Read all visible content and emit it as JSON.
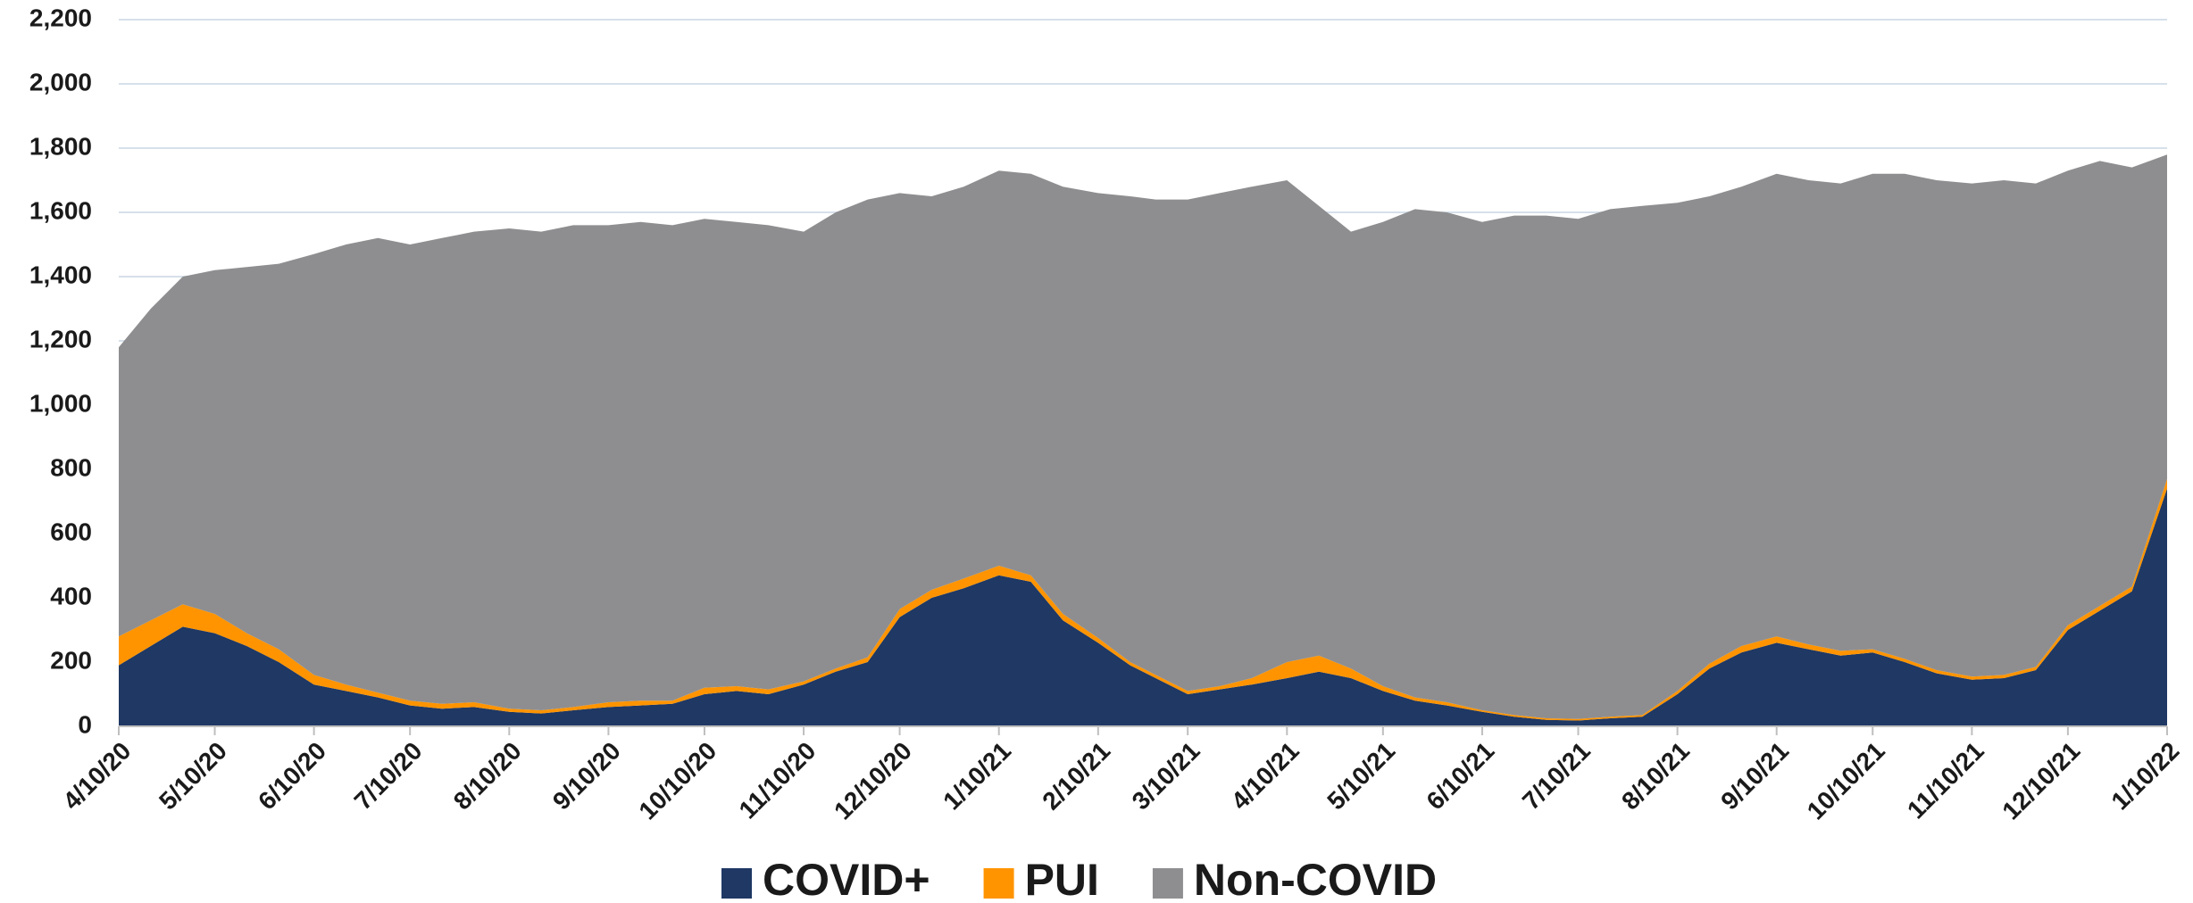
{
  "chart_data": {
    "type": "stacked_area",
    "x": [
      "4/10/20",
      "4/20/20",
      "4/30/20",
      "5/10/20",
      "5/20/20",
      "5/30/20",
      "6/10/20",
      "6/20/20",
      "6/30/20",
      "7/10/20",
      "7/20/20",
      "7/30/20",
      "8/10/20",
      "8/20/20",
      "8/30/20",
      "9/10/20",
      "9/20/20",
      "9/30/20",
      "10/10/20",
      "10/20/20",
      "10/30/20",
      "11/10/20",
      "11/20/20",
      "11/30/20",
      "12/10/20",
      "12/20/20",
      "12/30/20",
      "1/10/21",
      "1/20/21",
      "1/30/21",
      "2/10/21",
      "2/20/21",
      "2/28/21",
      "3/10/21",
      "3/20/21",
      "3/30/21",
      "4/10/21",
      "4/20/21",
      "4/30/21",
      "5/10/21",
      "5/20/21",
      "5/30/21",
      "6/10/21",
      "6/20/21",
      "6/30/21",
      "7/10/21",
      "7/20/21",
      "7/30/21",
      "8/10/21",
      "8/20/21",
      "8/30/21",
      "9/10/21",
      "9/20/21",
      "9/30/21",
      "10/10/21",
      "10/20/21",
      "10/30/21",
      "11/10/21",
      "11/20/21",
      "11/30/21",
      "12/10/21",
      "12/20/21",
      "12/30/21",
      "1/10/22"
    ],
    "series": [
      {
        "name": "COVID+",
        "color": "#1f3864",
        "values": [
          190,
          250,
          310,
          290,
          250,
          200,
          130,
          110,
          90,
          65,
          55,
          60,
          45,
          40,
          50,
          60,
          65,
          70,
          100,
          110,
          100,
          130,
          170,
          200,
          340,
          400,
          430,
          470,
          450,
          330,
          260,
          190,
          150,
          100,
          115,
          130,
          150,
          170,
          150,
          110,
          80,
          65,
          45,
          30,
          20,
          18,
          25,
          30,
          100,
          180,
          230,
          260,
          240,
          220,
          230,
          200,
          165,
          145,
          150,
          175,
          300,
          360,
          420,
          740
        ]
      },
      {
        "name": "PUI",
        "color": "#ff9400",
        "values": [
          90,
          80,
          70,
          60,
          40,
          40,
          30,
          20,
          15,
          15,
          15,
          15,
          10,
          10,
          10,
          15,
          15,
          10,
          20,
          15,
          15,
          10,
          10,
          15,
          25,
          25,
          30,
          30,
          20,
          20,
          15,
          10,
          10,
          10,
          10,
          20,
          50,
          50,
          30,
          15,
          10,
          10,
          5,
          5,
          5,
          5,
          5,
          5,
          10,
          15,
          20,
          20,
          15,
          15,
          10,
          10,
          10,
          10,
          10,
          10,
          15,
          15,
          15,
          30
        ]
      },
      {
        "name": "Non-COVID",
        "color": "#8e8e90",
        "values": [
          900,
          970,
          1020,
          1070,
          1140,
          1200,
          1310,
          1370,
          1415,
          1420,
          1450,
          1465,
          1495,
          1490,
          1500,
          1485,
          1490,
          1480,
          1460,
          1445,
          1445,
          1400,
          1420,
          1425,
          1295,
          1225,
          1220,
          1230,
          1250,
          1330,
          1385,
          1450,
          1480,
          1530,
          1535,
          1530,
          1500,
          1400,
          1360,
          1445,
          1520,
          1525,
          1520,
          1555,
          1565,
          1557,
          1580,
          1585,
          1520,
          1455,
          1430,
          1440,
          1445,
          1455,
          1480,
          1510,
          1525,
          1535,
          1540,
          1505,
          1415,
          1385,
          1305,
          1010
        ]
      }
    ],
    "xticks": [
      "4/10/20",
      "5/10/20",
      "6/10/20",
      "7/10/20",
      "8/10/20",
      "9/10/20",
      "10/10/20",
      "11/10/20",
      "12/10/20",
      "1/10/21",
      "2/10/21",
      "3/10/21",
      "4/10/21",
      "5/10/21",
      "6/10/21",
      "7/10/21",
      "8/10/21",
      "9/10/21",
      "10/10/21",
      "11/10/21",
      "12/10/21",
      "1/10/22"
    ],
    "ylim": [
      0,
      2200
    ],
    "yticks": [
      0,
      200,
      400,
      600,
      800,
      {
        "value": 1000,
        "label": "1,000"
      },
      {
        "value": 1200,
        "label": "1,200"
      },
      {
        "value": 1400,
        "label": "1,400"
      },
      {
        "value": 1600,
        "label": "1,600"
      },
      {
        "value": 1800,
        "label": "1,800"
      },
      {
        "value": 2000,
        "label": "2,000"
      },
      {
        "value": 2200,
        "label": "2,200"
      }
    ],
    "grid": true,
    "legend": "bottom"
  }
}
